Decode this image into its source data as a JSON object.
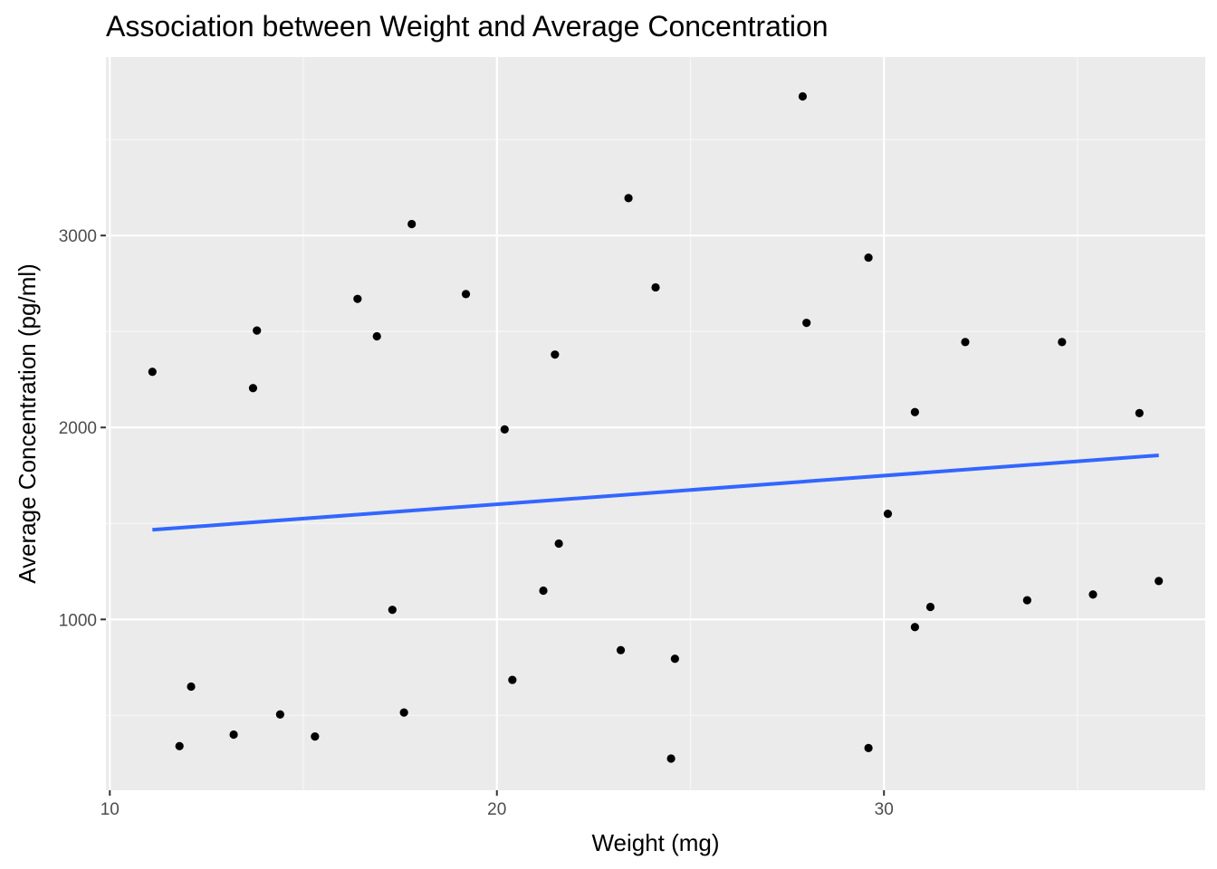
{
  "chart_data": {
    "type": "scatter",
    "title": "Association between Weight and Average Concentration",
    "xlabel": "Weight (mg)",
    "ylabel": "Average Concentration (pg/ml)",
    "xlim": [
      9.9,
      38.3
    ],
    "ylim": [
      110,
      3930
    ],
    "x_ticks": [
      10,
      20,
      30
    ],
    "x_tick_labels": [
      "10",
      "20",
      "30"
    ],
    "y_ticks": [
      1000,
      2000,
      3000
    ],
    "y_tick_labels": [
      "1000",
      "2000",
      "3000"
    ],
    "x_minor_ticks": [
      15,
      25,
      35
    ],
    "y_minor_ticks": [
      500,
      1500,
      2500,
      3500
    ],
    "grid": true,
    "points": [
      {
        "x": 11.1,
        "y": 2290
      },
      {
        "x": 11.8,
        "y": 340
      },
      {
        "x": 12.1,
        "y": 650
      },
      {
        "x": 13.2,
        "y": 400
      },
      {
        "x": 13.7,
        "y": 2205
      },
      {
        "x": 13.8,
        "y": 2505
      },
      {
        "x": 14.4,
        "y": 505
      },
      {
        "x": 15.3,
        "y": 390
      },
      {
        "x": 16.4,
        "y": 2670
      },
      {
        "x": 16.9,
        "y": 2475
      },
      {
        "x": 17.3,
        "y": 1050
      },
      {
        "x": 17.6,
        "y": 515
      },
      {
        "x": 17.8,
        "y": 3060
      },
      {
        "x": 19.2,
        "y": 2695
      },
      {
        "x": 20.2,
        "y": 1990
      },
      {
        "x": 20.4,
        "y": 685
      },
      {
        "x": 21.2,
        "y": 1150
      },
      {
        "x": 21.5,
        "y": 2380
      },
      {
        "x": 21.6,
        "y": 1395
      },
      {
        "x": 23.2,
        "y": 840
      },
      {
        "x": 23.4,
        "y": 3195
      },
      {
        "x": 24.1,
        "y": 2730
      },
      {
        "x": 24.5,
        "y": 275
      },
      {
        "x": 24.6,
        "y": 795
      },
      {
        "x": 27.9,
        "y": 3725
      },
      {
        "x": 28.0,
        "y": 2545
      },
      {
        "x": 29.6,
        "y": 2885
      },
      {
        "x": 29.6,
        "y": 330
      },
      {
        "x": 30.1,
        "y": 1550
      },
      {
        "x": 30.8,
        "y": 2080
      },
      {
        "x": 30.8,
        "y": 960
      },
      {
        "x": 31.2,
        "y": 1065
      },
      {
        "x": 32.1,
        "y": 2445
      },
      {
        "x": 33.7,
        "y": 1100
      },
      {
        "x": 34.6,
        "y": 2445
      },
      {
        "x": 35.4,
        "y": 1130
      },
      {
        "x": 36.6,
        "y": 2075
      },
      {
        "x": 37.1,
        "y": 1200
      }
    ],
    "trend_line": {
      "x": [
        11.1,
        37.1
      ],
      "y": [
        1467,
        1855
      ]
    },
    "colors": {
      "panel_background": "#ebebeb",
      "grid_major": "#ffffff",
      "grid_minor": "#f7f7f7",
      "point": "#000000",
      "trend_line": "#3366ff",
      "tick_mark": "#333333"
    }
  }
}
